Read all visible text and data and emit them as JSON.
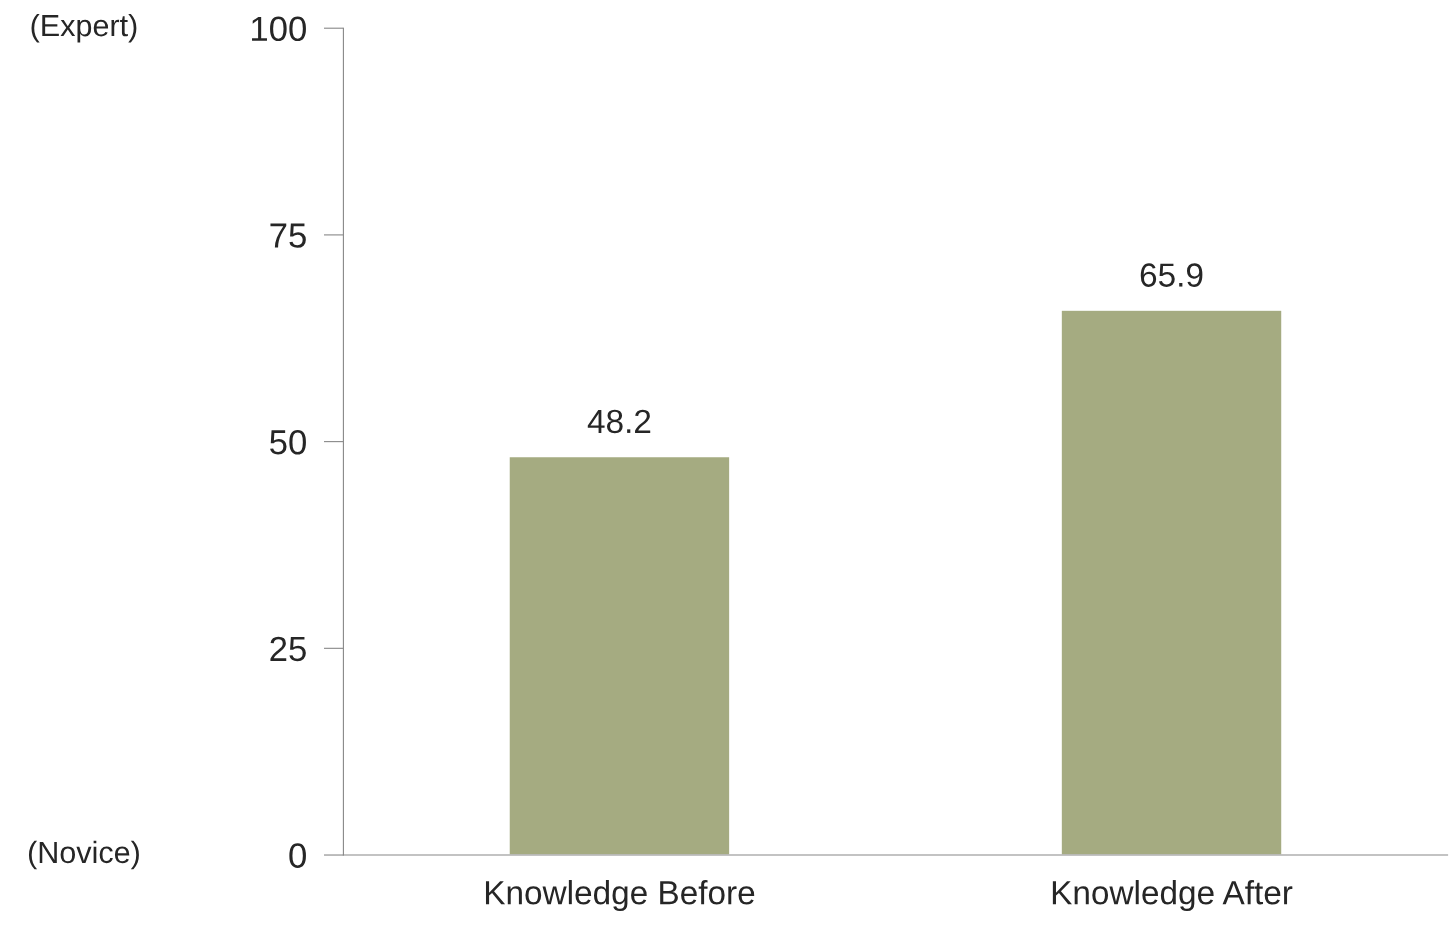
{
  "chart_data": {
    "type": "bar",
    "categories": [
      "Knowledge Before",
      "Knowledge After"
    ],
    "values": [
      48.2,
      65.9
    ],
    "color": "#a5ab81",
    "ylim": [
      0,
      100
    ],
    "yticks": [
      0,
      25,
      50,
      75,
      100
    ],
    "grid": false,
    "data_labels": true,
    "annotations": [
      "(Expert)",
      "(Novice)"
    ]
  }
}
